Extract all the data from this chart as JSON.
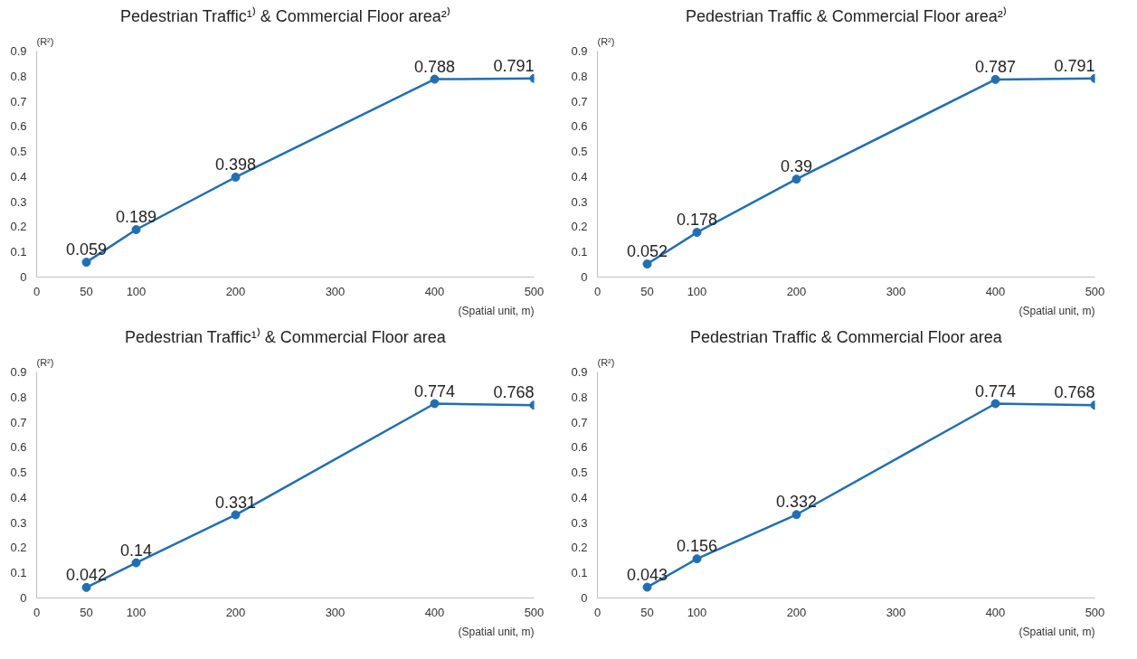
{
  "chart_data": [
    {
      "type": "line",
      "title": "Pedestrian Traffic¹⁾ & Commercial Floor area²⁾",
      "xlabel": "(Spatial unit, m)",
      "ylabel": "(R²)",
      "x": [
        50,
        100,
        200,
        400,
        500
      ],
      "series": [
        {
          "color": "#1f6fb4",
          "values": [
            0.059,
            0.189,
            0.398,
            0.788,
            0.791
          ]
        }
      ],
      "xlim": [
        0,
        500
      ],
      "xticks": [
        0,
        50,
        100,
        200,
        300,
        400,
        500
      ],
      "ylim": [
        0,
        0.9
      ],
      "yticks": [
        0,
        0.1,
        0.2,
        0.3,
        0.4,
        0.5,
        0.6,
        0.7,
        0.8,
        0.9
      ],
      "marker": "circle",
      "data_labels": true
    },
    {
      "type": "line",
      "title": "Pedestrian Traffic & Commercial Floor area²⁾",
      "xlabel": "(Spatial unit, m)",
      "ylabel": "(R²)",
      "x": [
        50,
        100,
        200,
        400,
        500
      ],
      "series": [
        {
          "color": "#1f6fb4",
          "values": [
            0.052,
            0.178,
            0.39,
            0.787,
            0.791
          ]
        }
      ],
      "xlim": [
        0,
        500
      ],
      "xticks": [
        0,
        50,
        100,
        200,
        300,
        400,
        500
      ],
      "ylim": [
        0,
        0.9
      ],
      "yticks": [
        0,
        0.1,
        0.2,
        0.3,
        0.4,
        0.5,
        0.6,
        0.7,
        0.8,
        0.9
      ],
      "marker": "circle",
      "data_labels": true
    },
    {
      "type": "line",
      "title": "Pedestrian Traffic¹⁾ & Commercial Floor area",
      "xlabel": "(Spatial unit, m)",
      "ylabel": "(R²)",
      "x": [
        50,
        100,
        200,
        400,
        500
      ],
      "series": [
        {
          "color": "#1f6fb4",
          "values": [
            0.042,
            0.14,
            0.331,
            0.774,
            0.768
          ]
        }
      ],
      "xlim": [
        0,
        500
      ],
      "xticks": [
        0,
        50,
        100,
        200,
        300,
        400,
        500
      ],
      "ylim": [
        0,
        0.9
      ],
      "yticks": [
        0,
        0.1,
        0.2,
        0.3,
        0.4,
        0.5,
        0.6,
        0.7,
        0.8,
        0.9
      ],
      "marker": "circle",
      "data_labels": true
    },
    {
      "type": "line",
      "title": "Pedestrian Traffic & Commercial Floor area",
      "xlabel": "(Spatial unit, m)",
      "ylabel": "(R²)",
      "x": [
        50,
        100,
        200,
        400,
        500
      ],
      "series": [
        {
          "color": "#1f6fb4",
          "values": [
            0.043,
            0.156,
            0.332,
            0.774,
            0.768
          ]
        }
      ],
      "xlim": [
        0,
        500
      ],
      "xticks": [
        0,
        50,
        100,
        200,
        300,
        400,
        500
      ],
      "ylim": [
        0,
        0.9
      ],
      "yticks": [
        0,
        0.1,
        0.2,
        0.3,
        0.4,
        0.5,
        0.6,
        0.7,
        0.8,
        0.9
      ],
      "marker": "circle",
      "data_labels": true
    }
  ]
}
